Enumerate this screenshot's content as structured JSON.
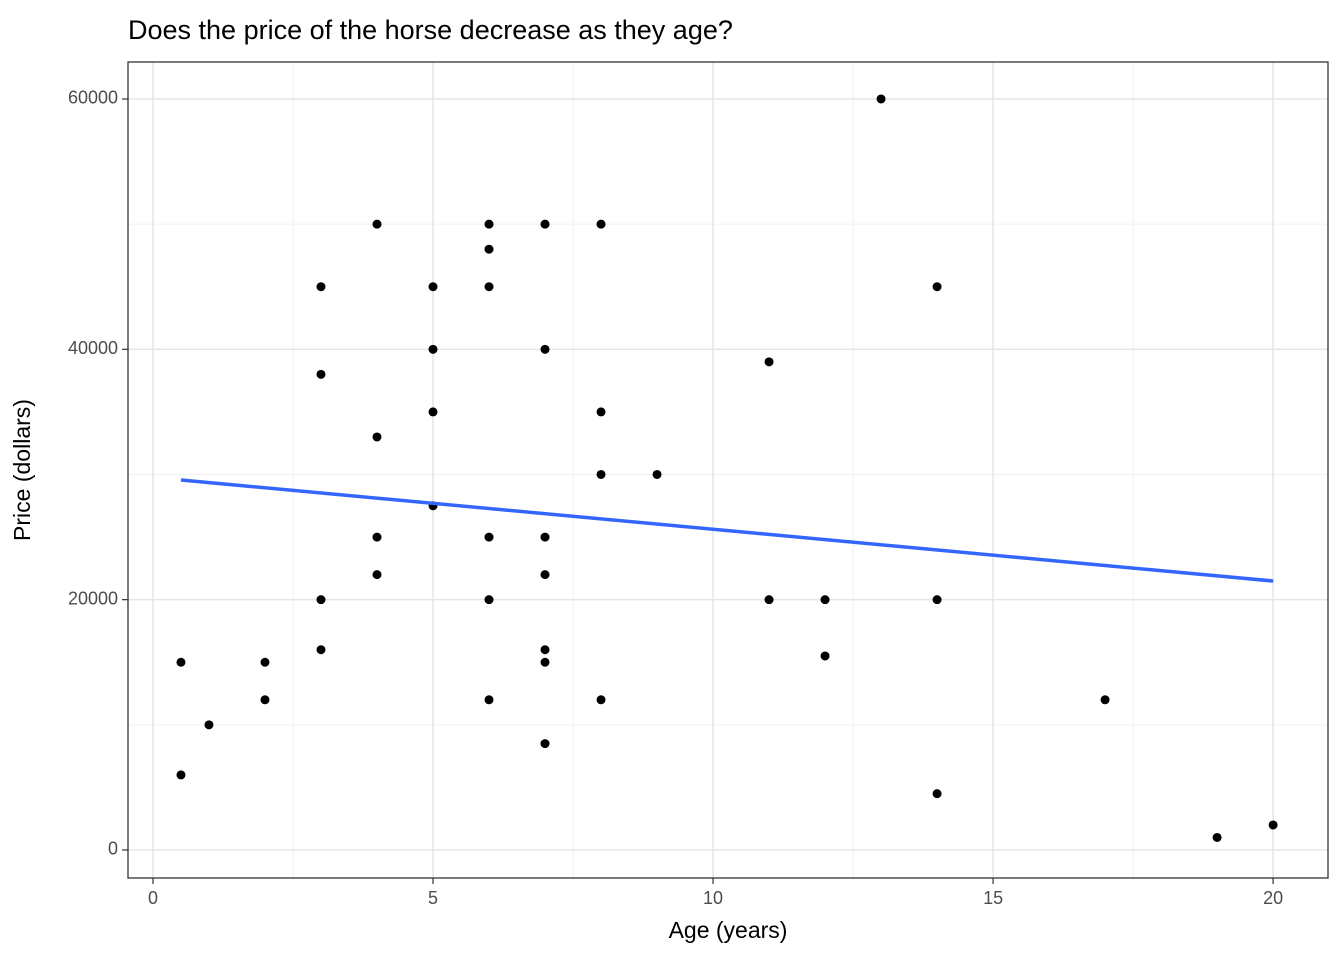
{
  "chart_data": {
    "type": "scatter",
    "title": "Does the price of the horse decrease as they age?",
    "x_label": "Age (years)",
    "y_label": "Price (dollars)",
    "x": [
      0.5,
      0.5,
      1,
      2,
      2,
      3,
      3,
      3,
      3,
      4,
      4,
      4,
      4,
      5,
      5,
      5,
      5,
      6,
      6,
      6,
      6,
      6,
      6,
      7,
      7,
      7,
      7,
      7,
      7,
      7,
      8,
      8,
      8,
      8,
      9,
      11,
      11,
      12,
      12,
      13,
      14,
      14,
      14,
      17,
      19,
      20
    ],
    "values": [
      15000,
      6000,
      10000,
      15000,
      12000,
      45000,
      38000,
      20000,
      16000,
      50000,
      33000,
      25000,
      22000,
      45000,
      40000,
      35000,
      27500,
      50000,
      48000,
      45000,
      25000,
      20000,
      12000,
      50000,
      40000,
      25000,
      22000,
      16000,
      15000,
      8500,
      50000,
      35000,
      30000,
      12000,
      30000,
      39000,
      20000,
      20000,
      15500,
      60000,
      45000,
      20000,
      4500,
      12000,
      1000,
      2000
    ],
    "color": "#000000",
    "fit": {
      "x": [
        0.5,
        20
      ],
      "values": [
        29560,
        21490
      ],
      "color": "#3366ff"
    },
    "xlim": [
      -0.446,
      20.98
    ],
    "ylim": [
      -2237,
      62955
    ],
    "xticks": [
      0,
      5,
      10,
      15,
      20
    ],
    "yticks": [
      0,
      20000,
      40000,
      60000
    ],
    "xminor": [
      2.5,
      7.5,
      12.5,
      17.5
    ],
    "yminor": [
      10000,
      30000,
      50000
    ],
    "grid": true
  }
}
